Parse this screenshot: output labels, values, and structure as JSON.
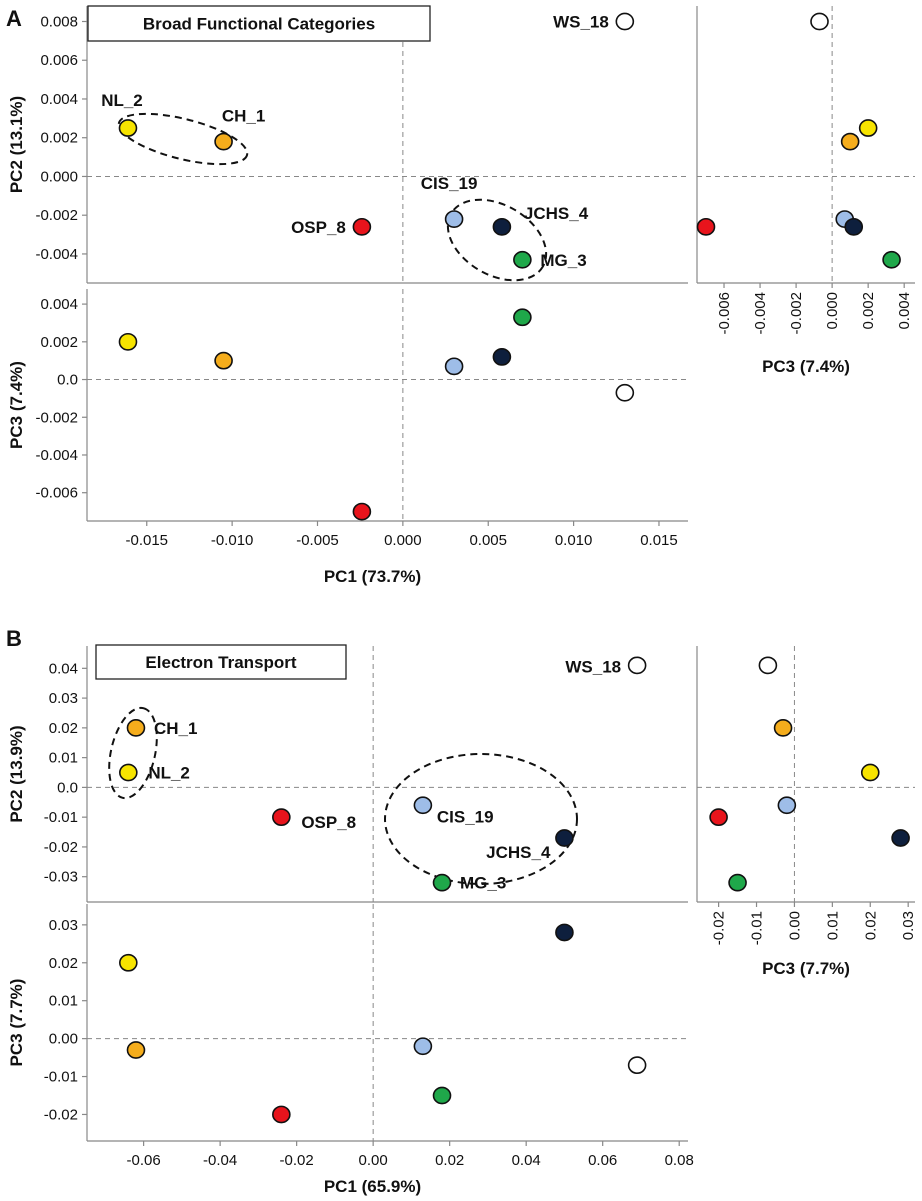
{
  "chart_data": [
    {
      "type": "scatter",
      "panel_letter": "A",
      "title": "Broad Functional Categories",
      "pc1_label": "PC1 (73.7%)",
      "pc2_label": "PC2 (13.1%)",
      "pc3_label": "PC3 (7.4%)",
      "pc1_ticks": [
        "-0.015",
        "-0.010",
        "-0.005",
        "0.000",
        "0.005",
        "0.010",
        "0.015"
      ],
      "pc1_tick_values": [
        -0.015,
        -0.01,
        -0.005,
        0.0,
        0.005,
        0.01,
        0.015
      ],
      "pc2_ticks": [
        "0.008",
        "0.006",
        "0.004",
        "0.002",
        "0.000",
        "-0.002",
        "-0.004"
      ],
      "pc2_tick_values": [
        0.008,
        0.006,
        0.004,
        0.002,
        0.0,
        -0.002,
        -0.004
      ],
      "pc3_ticks": [
        "0.004",
        "0.002",
        "0.0",
        "-0.002",
        "-0.004",
        "-0.006"
      ],
      "pc3_tick_values": [
        0.004,
        0.002,
        0.0,
        -0.002,
        -0.004,
        -0.006
      ],
      "pc3_side_ticks": [
        "-0.006",
        "-0.004",
        "-0.002",
        "0.000",
        "0.002",
        "0.004"
      ],
      "pc3_side_tick_values": [
        -0.006,
        -0.004,
        -0.002,
        0.0,
        0.002,
        0.004
      ],
      "pc1_range": [
        -0.0185,
        0.0167
      ],
      "pc2_range": [
        -0.0055,
        0.0088
      ],
      "pc3_range": [
        -0.0075,
        0.0048
      ],
      "pc3_side_range": [
        -0.0075,
        0.0046
      ],
      "points": [
        {
          "name": "NL_2",
          "pc1": -0.0161,
          "pc2": 0.0025,
          "pc3": 0.002,
          "color": "#f7e400",
          "label_pos": "above"
        },
        {
          "name": "CH_1",
          "pc1": -0.0105,
          "pc2": 0.0018,
          "pc3": 0.001,
          "color": "#f5ad1c",
          "label_pos": "above-right"
        },
        {
          "name": "OSP_8",
          "pc1": -0.0024,
          "pc2": -0.0026,
          "pc3": -0.007,
          "color": "#e8141c",
          "label_pos": "left"
        },
        {
          "name": "CIS_19",
          "pc1": 0.003,
          "pc2": -0.0022,
          "pc3": 0.0007,
          "color": "#9ebde8",
          "label_pos": "above"
        },
        {
          "name": "JCHS_4",
          "pc1": 0.0058,
          "pc2": -0.0026,
          "pc3": 0.0012,
          "color": "#0e1f3d",
          "label_pos": "right-up"
        },
        {
          "name": "MG_3",
          "pc1": 0.007,
          "pc2": -0.0043,
          "pc3": 0.0033,
          "color": "#1fa84a",
          "label_pos": "right"
        },
        {
          "name": "WS_18",
          "pc1": 0.013,
          "pc2": 0.008,
          "pc3": -0.0007,
          "color": "#ffffff",
          "label_pos": "left"
        }
      ],
      "clusters": [
        [
          "NL_2",
          "CH_1"
        ],
        [
          "CIS_19",
          "JCHS_4",
          "MG_3"
        ]
      ]
    },
    {
      "type": "scatter",
      "panel_letter": "B",
      "title": "Electron Transport",
      "pc1_label": "PC1 (65.9%)",
      "pc2_label": "PC2 (13.9%)",
      "pc3_label": "PC3 (7.7%)",
      "pc1_ticks": [
        "-0.06",
        "-0.04",
        "-0.02",
        "0.00",
        "0.02",
        "0.04",
        "0.06",
        "0.08"
      ],
      "pc1_tick_values": [
        -0.06,
        -0.04,
        -0.02,
        0.0,
        0.02,
        0.04,
        0.06,
        0.08
      ],
      "pc2_ticks": [
        "0.04",
        "0.03",
        "0.02",
        "0.01",
        "0.0",
        "-0.01",
        "-0.02",
        "-0.03"
      ],
      "pc2_tick_values": [
        0.04,
        0.03,
        0.02,
        0.01,
        0.0,
        -0.01,
        -0.02,
        -0.03
      ],
      "pc3_ticks": [
        "0.03",
        "0.02",
        "0.01",
        "0.00",
        "-0.01",
        "-0.02"
      ],
      "pc3_tick_values": [
        0.03,
        0.02,
        0.01,
        0.0,
        -0.01,
        -0.02
      ],
      "pc3_side_ticks": [
        "-0.02",
        "-0.01",
        "0.00",
        "0.01",
        "0.02",
        "0.03"
      ],
      "pc3_side_tick_values": [
        -0.02,
        -0.01,
        0.0,
        0.01,
        0.02,
        0.03
      ],
      "pc1_range": [
        -0.0748,
        0.0823
      ],
      "pc2_range": [
        -0.0385,
        0.0475
      ],
      "pc3_range": [
        -0.027,
        0.0355
      ],
      "pc3_side_range": [
        -0.0257,
        0.0318
      ],
      "points": [
        {
          "name": "CH_1",
          "pc1": -0.062,
          "pc2": 0.02,
          "pc3": -0.003,
          "color": "#f5ad1c",
          "label_pos": "right"
        },
        {
          "name": "NL_2",
          "pc1": -0.064,
          "pc2": 0.005,
          "pc3": 0.02,
          "color": "#f7e400",
          "label_pos": "right"
        },
        {
          "name": "OSP_8",
          "pc1": -0.024,
          "pc2": -0.01,
          "pc3": -0.02,
          "color": "#e8141c",
          "label_pos": "right"
        },
        {
          "name": "CIS_19",
          "pc1": 0.013,
          "pc2": -0.006,
          "pc3": -0.002,
          "color": "#9ebde8",
          "label_pos": "right-down"
        },
        {
          "name": "JCHS_4",
          "pc1": 0.05,
          "pc2": -0.017,
          "pc3": 0.028,
          "color": "#0e1f3d",
          "label_pos": "left-down"
        },
        {
          "name": "MG_3",
          "pc1": 0.018,
          "pc2": -0.032,
          "pc3": -0.015,
          "color": "#1fa84a",
          "label_pos": "right"
        },
        {
          "name": "WS_18",
          "pc1": 0.069,
          "pc2": 0.041,
          "pc3": -0.007,
          "color": "#ffffff",
          "label_pos": "left"
        }
      ],
      "clusters": [
        [
          "CH_1",
          "NL_2"
        ],
        [
          "CIS_19",
          "JCHS_4",
          "MG_3"
        ]
      ]
    }
  ]
}
